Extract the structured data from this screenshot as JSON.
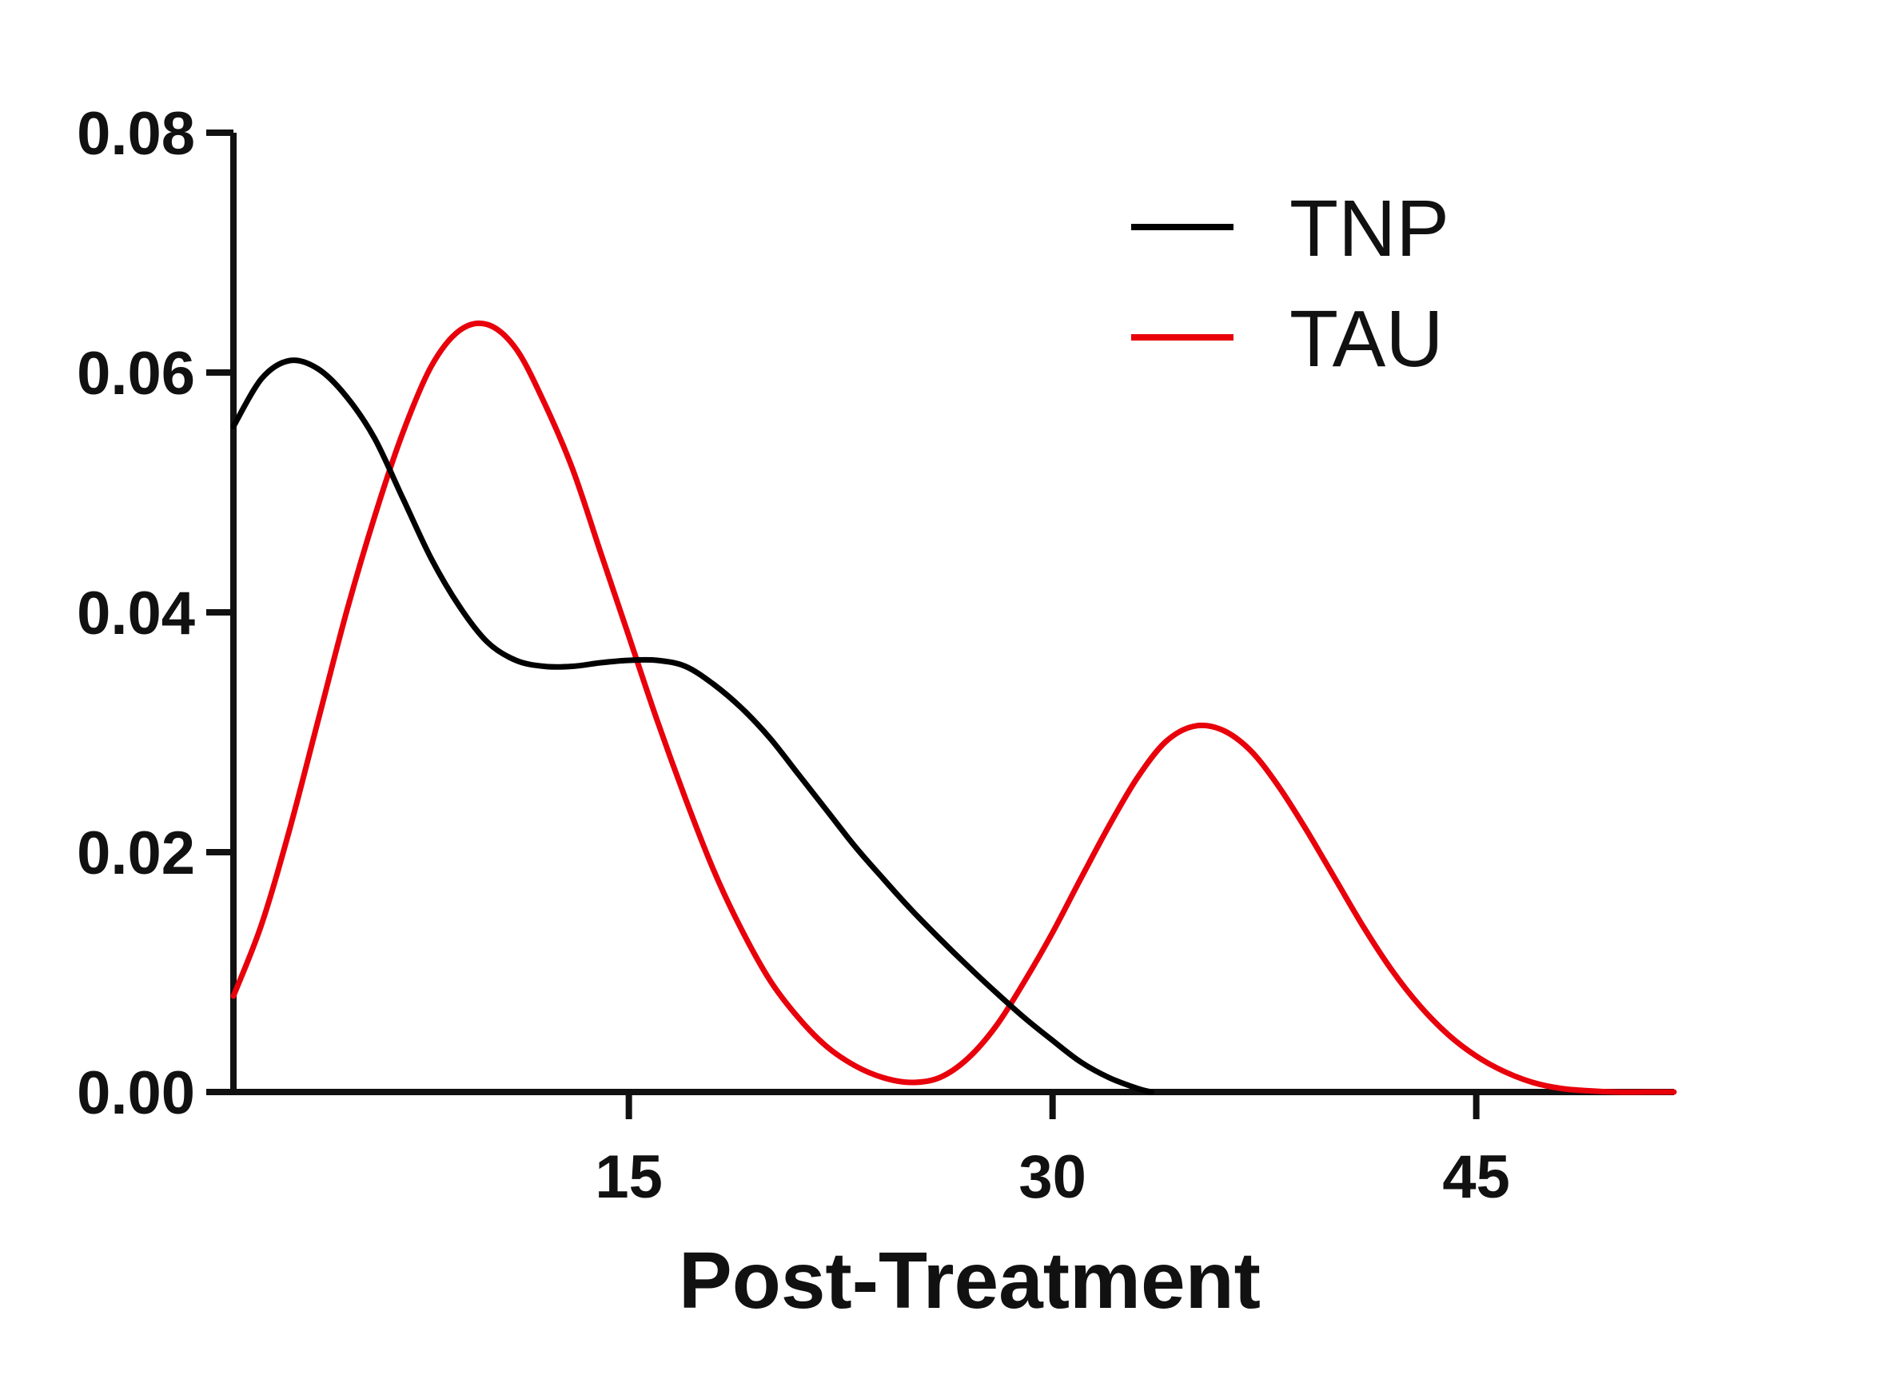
{
  "chart_data": {
    "type": "line",
    "title": "",
    "xlabel": "Post-Treatment",
    "ylabel": "",
    "xlim": [
      1,
      52
    ],
    "ylim": [
      0,
      0.08
    ],
    "xticks": [
      15,
      30,
      45
    ],
    "xtick_labels": [
      "15",
      "30",
      "45"
    ],
    "yticks": [
      0,
      0.02,
      0.04,
      0.06,
      0.08
    ],
    "ytick_labels": [
      "0.00",
      "0.02",
      "0.04",
      "0.06",
      "0.08"
    ],
    "grid": false,
    "legend_position": "top-right",
    "series": [
      {
        "name": "TNP",
        "color": "#000000",
        "x": [
          1,
          2,
          3,
          4,
          5,
          6,
          7,
          8,
          9,
          10,
          11,
          12,
          13,
          14,
          15,
          16,
          17,
          18,
          19,
          20,
          21,
          22,
          23,
          24,
          25,
          26,
          27,
          28,
          29,
          30,
          31,
          32,
          33,
          33.5
        ],
        "y": [
          0.0555,
          0.0595,
          0.061,
          0.0603,
          0.058,
          0.0545,
          0.0495,
          0.0445,
          0.0405,
          0.0375,
          0.036,
          0.0355,
          0.0355,
          0.0358,
          0.036,
          0.036,
          0.0355,
          0.034,
          0.032,
          0.0295,
          0.0265,
          0.0235,
          0.0205,
          0.0178,
          0.0152,
          0.0128,
          0.0105,
          0.0083,
          0.0062,
          0.0043,
          0.0025,
          0.0012,
          0.0003,
          0.0
        ]
      },
      {
        "name": "TAU",
        "color": "#e8000b",
        "x": [
          1,
          2,
          3,
          4,
          5,
          6,
          7,
          8,
          9,
          10,
          11,
          12,
          13,
          14,
          15,
          16,
          17,
          18,
          19,
          20,
          21,
          22,
          23,
          24,
          25,
          26,
          27,
          28,
          29,
          30,
          31,
          32,
          33,
          34,
          35,
          36,
          37,
          38,
          39,
          40,
          41,
          42,
          43,
          44,
          45,
          46,
          47,
          48,
          49,
          50,
          51,
          52
        ],
        "y": [
          0.008,
          0.014,
          0.022,
          0.031,
          0.04,
          0.048,
          0.055,
          0.0605,
          0.0635,
          0.064,
          0.062,
          0.0575,
          0.052,
          0.045,
          0.038,
          0.031,
          0.0245,
          0.0185,
          0.0135,
          0.0093,
          0.0062,
          0.0038,
          0.0022,
          0.0012,
          0.0008,
          0.0012,
          0.0028,
          0.0055,
          0.0092,
          0.0133,
          0.0178,
          0.0222,
          0.0262,
          0.0292,
          0.0305,
          0.0302,
          0.0285,
          0.0255,
          0.0218,
          0.0178,
          0.0138,
          0.0102,
          0.0072,
          0.0048,
          0.003,
          0.0017,
          0.0008,
          0.0003,
          0.0001,
          0.0,
          0.0,
          0.0
        ]
      }
    ]
  }
}
